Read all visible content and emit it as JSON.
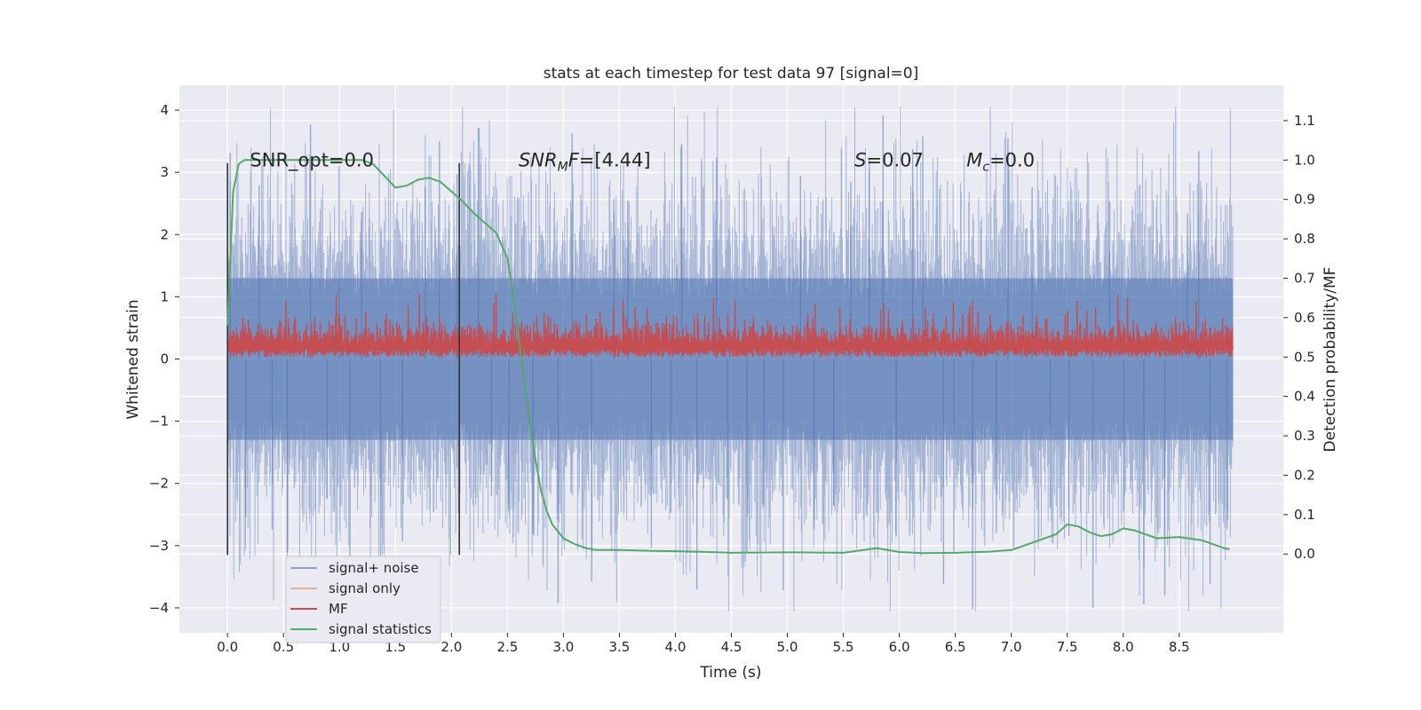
{
  "chart_data": {
    "type": "line",
    "title": "stats at each timestep for test data 97 [signal=0]",
    "xlabel": "Time (s)",
    "ylabel": "Whitened strain",
    "y2label": "Detection probability/MF",
    "xlim": [
      -0.43,
      9.43
    ],
    "ylim": [
      -4.4,
      4.4
    ],
    "y2lim": [
      -0.2,
      1.19
    ],
    "xticks": [
      0.0,
      0.5,
      1.0,
      1.5,
      2.0,
      2.5,
      3.0,
      3.5,
      4.0,
      4.5,
      5.0,
      5.5,
      6.0,
      6.5,
      7.0,
      7.5,
      8.0,
      8.5
    ],
    "xtick_labels": [
      "0.0",
      "0.5",
      "1.0",
      "1.5",
      "2.0",
      "2.5",
      "3.0",
      "3.5",
      "4.0",
      "4.5",
      "5.0",
      "5.5",
      "6.0",
      "6.5",
      "7.0",
      "7.5",
      "8.0",
      "8.5"
    ],
    "yticks": [
      -4,
      -3,
      -2,
      -1,
      0,
      1,
      2,
      3,
      4
    ],
    "ytick_labels": [
      "−4",
      "−3",
      "−2",
      "−1",
      "0",
      "1",
      "2",
      "3",
      "4"
    ],
    "y2ticks": [
      0.0,
      0.1,
      0.2,
      0.3,
      0.4,
      0.5,
      0.6,
      0.7,
      0.8,
      0.9,
      1.0,
      1.1
    ],
    "y2tick_labels": [
      "0.0",
      "0.1",
      "0.2",
      "0.3",
      "0.4",
      "0.5",
      "0.6",
      "0.7",
      "0.8",
      "0.9",
      "1.0",
      "1.1"
    ],
    "grid": true,
    "legend_position": "lower-left",
    "noise_trace": {
      "t_range": [
        0.0,
        8.98
      ],
      "core_band": [
        -1.3,
        1.3
      ],
      "typical_peak": 2.3,
      "max_abs": 4.05
    },
    "mf_trace": {
      "t_range": [
        0.0,
        8.98
      ],
      "y2_band": [
        0.5,
        0.63
      ]
    },
    "vertical_lines": [
      {
        "x": 0.0,
        "y_range": [
          -3.15,
          3.15
        ]
      },
      {
        "x": 2.07,
        "y_range": [
          -3.15,
          3.15
        ]
      }
    ],
    "series": [
      {
        "name": "signal+ noise",
        "color": "#4c72b0",
        "axis": "left"
      },
      {
        "name": "signal only",
        "color": "#dd8452",
        "axis": "left",
        "x": [],
        "y": []
      },
      {
        "name": "MF",
        "color": "#c44e52",
        "axis": "right"
      },
      {
        "name": "signal statistics",
        "color": "#55a868",
        "axis": "right",
        "x": [
          0.0,
          0.05,
          0.1,
          0.15,
          0.2,
          0.3,
          0.5,
          0.8,
          1.0,
          1.2,
          1.3,
          1.4,
          1.5,
          1.6,
          1.7,
          1.8,
          1.9,
          2.0,
          2.1,
          2.2,
          2.3,
          2.4,
          2.5,
          2.55,
          2.6,
          2.65,
          2.7,
          2.75,
          2.8,
          2.85,
          2.9,
          3.0,
          3.1,
          3.2,
          3.3,
          3.5,
          3.8,
          4.0,
          4.3,
          4.5,
          5.0,
          5.5,
          5.8,
          6.0,
          6.2,
          6.5,
          6.8,
          7.0,
          7.2,
          7.4,
          7.5,
          7.6,
          7.7,
          7.8,
          7.9,
          8.0,
          8.1,
          8.3,
          8.5,
          8.7,
          8.9,
          8.95
        ],
        "y": [
          0.58,
          0.92,
          0.99,
          1.0,
          1.0,
          1.0,
          1.0,
          1.0,
          1.0,
          1.0,
          0.99,
          0.96,
          0.93,
          0.935,
          0.95,
          0.955,
          0.945,
          0.92,
          0.895,
          0.865,
          0.84,
          0.815,
          0.75,
          0.66,
          0.55,
          0.44,
          0.33,
          0.24,
          0.16,
          0.11,
          0.075,
          0.04,
          0.025,
          0.015,
          0.01,
          0.01,
          0.008,
          0.007,
          0.005,
          0.003,
          0.004,
          0.003,
          0.015,
          0.005,
          0.002,
          0.003,
          0.006,
          0.01,
          0.03,
          0.05,
          0.075,
          0.07,
          0.055,
          0.045,
          0.05,
          0.065,
          0.06,
          0.04,
          0.043,
          0.035,
          0.015,
          0.012
        ]
      }
    ],
    "annotations": [
      {
        "base": "SNR_opt=0.0",
        "sub": "",
        "rest": "",
        "italic": false,
        "x": 0.2,
        "y2": 1.0
      },
      {
        "base": "SNR",
        "sub": "M",
        "rest": "F=[4.44]",
        "italic": true,
        "x": 2.6,
        "y2": 1.0
      },
      {
        "base": "S",
        "sub": "",
        "rest": "=0.07",
        "italic": true,
        "x": 5.6,
        "y2": 1.0
      },
      {
        "base": "M",
        "sub": "c",
        "rest": "=0.0",
        "italic": true,
        "x": 6.6,
        "y2": 1.0
      }
    ]
  }
}
